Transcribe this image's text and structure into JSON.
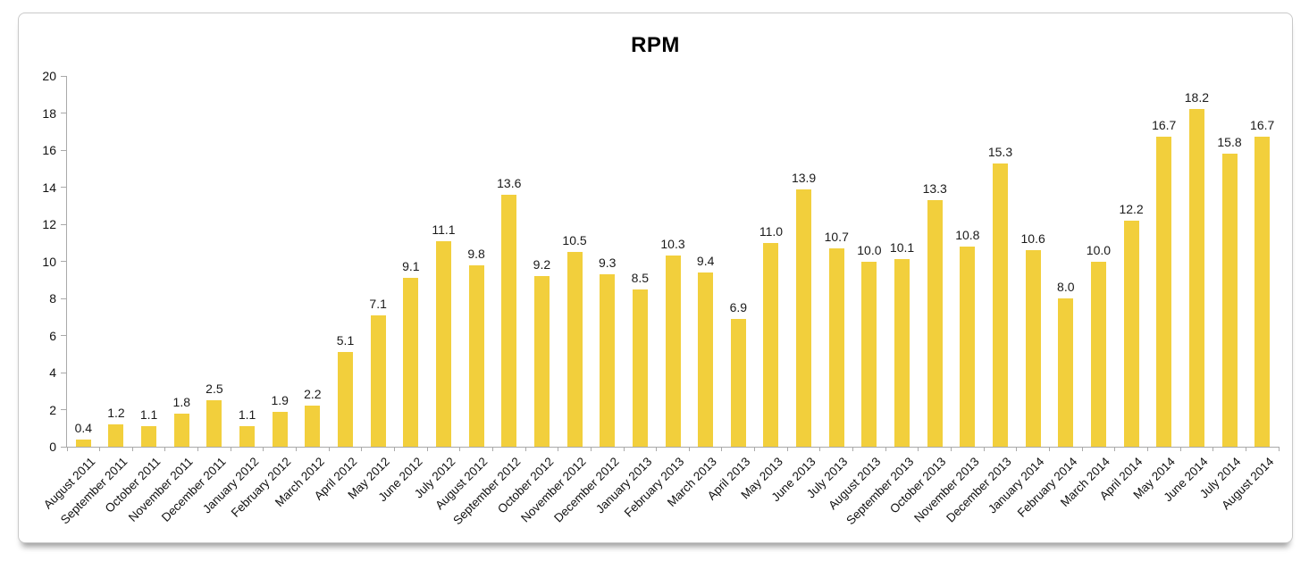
{
  "chart_data": {
    "type": "bar",
    "title": "RPM",
    "categories": [
      "August 2011",
      "September 2011",
      "October 2011",
      "November 2011",
      "December 2011",
      "January 2012",
      "February 2012",
      "March 2012",
      "April 2012",
      "May 2012",
      "June 2012",
      "July 2012",
      "August 2012",
      "September 2012",
      "October 2012",
      "November 2012",
      "December 2012",
      "January 2013",
      "February 2013",
      "March 2013",
      "April 2013",
      "May 2013",
      "June 2013",
      "July 2013",
      "August 2013",
      "September 2013",
      "October 2013",
      "November 2013",
      "December 2013",
      "January 2014",
      "February 2014",
      "March 2014",
      "April 2014",
      "May 2014",
      "June 2014",
      "July 2014",
      "August 2014"
    ],
    "values": [
      0.4,
      1.2,
      1.1,
      1.8,
      2.5,
      1.1,
      1.9,
      2.2,
      5.1,
      7.1,
      9.1,
      11.1,
      9.8,
      13.6,
      9.2,
      10.5,
      9.3,
      8.5,
      10.3,
      9.4,
      6.9,
      11.0,
      13.9,
      10.7,
      10.0,
      10.1,
      13.3,
      10.8,
      15.3,
      10.6,
      8.0,
      10.0,
      12.2,
      16.7,
      18.2,
      15.8,
      16.7
    ],
    "xlabel": "",
    "ylabel": "",
    "ylim": [
      0,
      20
    ],
    "yticks": [
      0,
      2,
      4,
      6,
      8,
      10,
      12,
      14,
      16,
      18,
      20
    ],
    "grid": false,
    "legend": "none",
    "bar_color": "#F2CF3C",
    "axis_color": "#A9A9A9",
    "label_color": "#1A1A1A"
  }
}
